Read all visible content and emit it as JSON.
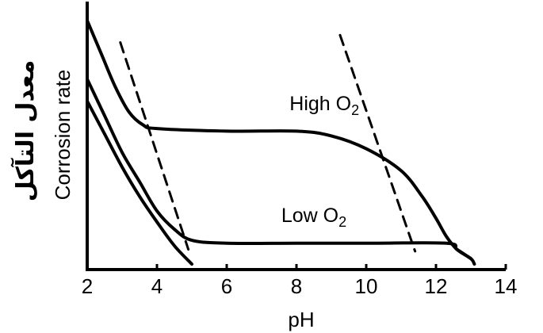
{
  "chart_data": {
    "type": "line",
    "xlabel": "pH",
    "ylabel": "Corrosion rate",
    "ylabel_arabic": "معدل التآكل",
    "xlim": [
      2,
      14
    ],
    "xticks": [
      "2",
      "4",
      "6",
      "8",
      "10",
      "12",
      "14"
    ],
    "grid": false,
    "legend": "none",
    "series": [
      {
        "name": "High O2",
        "style": "solid",
        "points": [
          [
            2.0,
            6.8
          ],
          [
            2.4,
            5.9
          ],
          [
            2.8,
            5.0
          ],
          [
            3.2,
            4.3
          ],
          [
            3.6,
            3.95
          ],
          [
            4.0,
            3.85
          ],
          [
            6.0,
            3.78
          ],
          [
            8.0,
            3.78
          ],
          [
            9.0,
            3.65
          ],
          [
            10.0,
            3.3
          ],
          [
            11.0,
            2.7
          ],
          [
            11.6,
            2.0
          ],
          [
            12.0,
            1.4
          ],
          [
            12.3,
            0.9
          ],
          [
            12.6,
            0.55
          ],
          [
            13.0,
            0.3
          ],
          [
            13.1,
            0.15
          ]
        ]
      },
      {
        "name": "Low O2",
        "style": "solid",
        "points": [
          [
            2.0,
            5.2
          ],
          [
            2.5,
            4.2
          ],
          [
            3.0,
            3.2
          ],
          [
            3.5,
            2.4
          ],
          [
            4.0,
            1.6
          ],
          [
            4.5,
            1.1
          ],
          [
            5.0,
            0.8
          ],
          [
            6.0,
            0.72
          ],
          [
            8.0,
            0.72
          ],
          [
            10.0,
            0.72
          ],
          [
            12.3,
            0.72
          ],
          [
            12.6,
            0.55
          ],
          [
            13.0,
            0.3
          ]
        ]
      },
      {
        "name": "",
        "style": "solid",
        "points": [
          [
            2.0,
            4.6
          ],
          [
            2.5,
            3.7
          ],
          [
            3.0,
            2.8
          ],
          [
            3.5,
            2.0
          ],
          [
            4.0,
            1.3
          ],
          [
            4.5,
            0.65
          ],
          [
            5.0,
            0.15
          ]
        ]
      },
      {
        "name": "",
        "style": "dashed",
        "points": [
          [
            2.95,
            6.2
          ],
          [
            4.9,
            0.55
          ]
        ]
      },
      {
        "name": "",
        "style": "dashed",
        "points": [
          [
            9.25,
            6.4
          ],
          [
            11.4,
            0.5
          ]
        ]
      }
    ],
    "annotations": [
      {
        "text": "High O2",
        "x": 8.8,
        "y": 4.35
      },
      {
        "text": "Low O2",
        "x": 8.5,
        "y": 1.3
      }
    ]
  }
}
